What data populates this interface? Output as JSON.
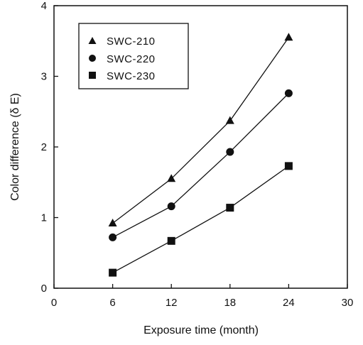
{
  "chart_data": {
    "type": "line",
    "title": "",
    "xlabel": "Exposure time (month)",
    "ylabel": "Color difference (δ E)",
    "xlim": [
      0,
      30
    ],
    "ylim": [
      0,
      4
    ],
    "xticks": [
      0,
      6,
      12,
      18,
      24,
      30
    ],
    "yticks": [
      0,
      1,
      2,
      3,
      4
    ],
    "grid": false,
    "legend_position": "top-left",
    "x": [
      6,
      12,
      18,
      24
    ],
    "series": [
      {
        "name": "SWC-210",
        "marker": "triangle",
        "values": [
          0.92,
          1.55,
          2.37,
          3.55
        ]
      },
      {
        "name": "SWC-220",
        "marker": "circle",
        "values": [
          0.72,
          1.16,
          1.93,
          2.76
        ]
      },
      {
        "name": "SWC-230",
        "marker": "square",
        "values": [
          0.22,
          0.67,
          1.14,
          1.73
        ]
      }
    ],
    "colors": {
      "ink": "#111111",
      "background": "#ffffff"
    }
  }
}
